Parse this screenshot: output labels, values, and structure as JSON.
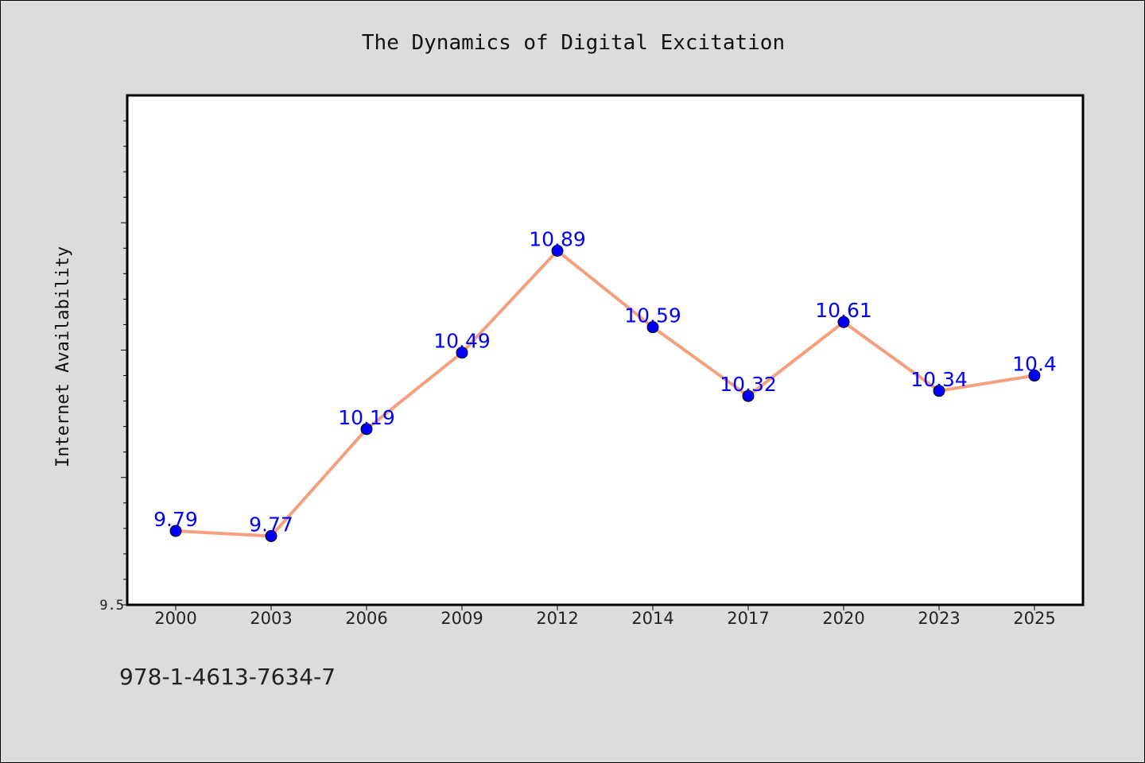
{
  "chart_data": {
    "type": "line",
    "title": "The Dynamics of Digital Excitation",
    "xlabel": "",
    "ylabel": "Internet Availability",
    "categories": [
      "2000",
      "2003",
      "2006",
      "2009",
      "2012",
      "2014",
      "2017",
      "2020",
      "2023",
      "2025"
    ],
    "series": [
      {
        "values": [
          9.79,
          9.77,
          10.19,
          10.49,
          10.89,
          10.59,
          10.32,
          10.61,
          10.34,
          10.4
        ]
      }
    ],
    "data_labels": [
      "9.79",
      "9.77",
      "10.19",
      "10.49",
      "10.89",
      "10.59",
      "10.32",
      "10.61",
      "10.34",
      "10.4"
    ],
    "y_tick_labels": [
      "9.5"
    ],
    "ylim": [
      9.5,
      11.5
    ],
    "grid": false,
    "line_color": "#f4a07f",
    "marker_color": "#0000ff",
    "label_color": "#0000ff"
  },
  "footer": {
    "isbn": "978-1-4613-7634-7"
  }
}
